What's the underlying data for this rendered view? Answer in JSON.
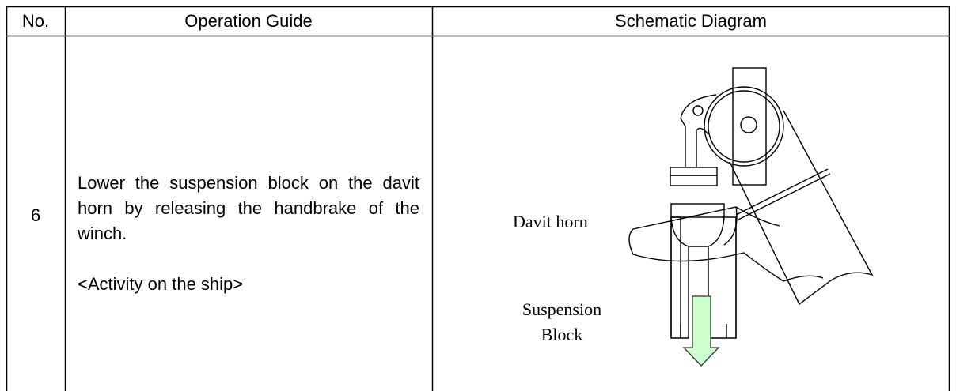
{
  "table": {
    "headers": [
      "No.",
      "Operation Guide",
      "Schematic Diagram"
    ],
    "rows": [
      [
        "6",
        {
          "text": "Lower the suspension block on the davit horn by releasing the handbrake of the winch.",
          "note": "<Activity on the ship>"
        },
        {
          "labels": [
            "Davit horn",
            "Suspension Block"
          ]
        }
      ]
    ]
  }
}
